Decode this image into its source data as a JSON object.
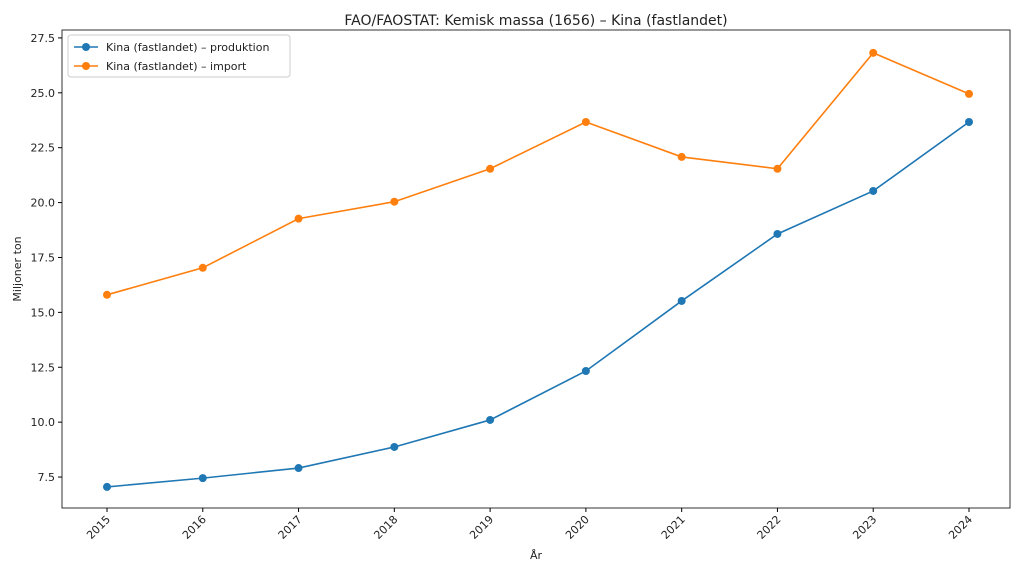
{
  "chart_data": {
    "type": "line",
    "title": "FAO/FAOSTAT: Kemisk massa (1656) – Kina (fastlandet)",
    "xlabel": "År",
    "ylabel": "Miljoner ton",
    "x": [
      2015,
      2016,
      2017,
      2018,
      2019,
      2020,
      2021,
      2022,
      2023,
      2024
    ],
    "xtick_labels": [
      "2015",
      "2016",
      "2017",
      "2018",
      "2019",
      "2020",
      "2021",
      "2022",
      "2023",
      "2024"
    ],
    "yticks": [
      7.5,
      10.0,
      12.5,
      15.0,
      17.5,
      20.0,
      22.5,
      25.0,
      27.5
    ],
    "ytick_labels": [
      "7.5",
      "10.0",
      "12.5",
      "15.0",
      "17.5",
      "20.0",
      "22.5",
      "25.0",
      "27.5"
    ],
    "ylim": [
      6.09,
      27.86
    ],
    "grid": false,
    "legend_position": "top-left",
    "series": [
      {
        "name": "Kina (fastlandet) – produktion",
        "color": "#1f77b4",
        "values": [
          7.05,
          7.45,
          7.91,
          8.87,
          10.1,
          12.33,
          15.52,
          18.57,
          20.53,
          23.67
        ]
      },
      {
        "name": "Kina (fastlandet) – import",
        "color": "#ff7f0e",
        "values": [
          15.8,
          17.03,
          19.27,
          20.04,
          21.54,
          23.67,
          22.08,
          21.54,
          26.82,
          24.95
        ]
      }
    ]
  }
}
